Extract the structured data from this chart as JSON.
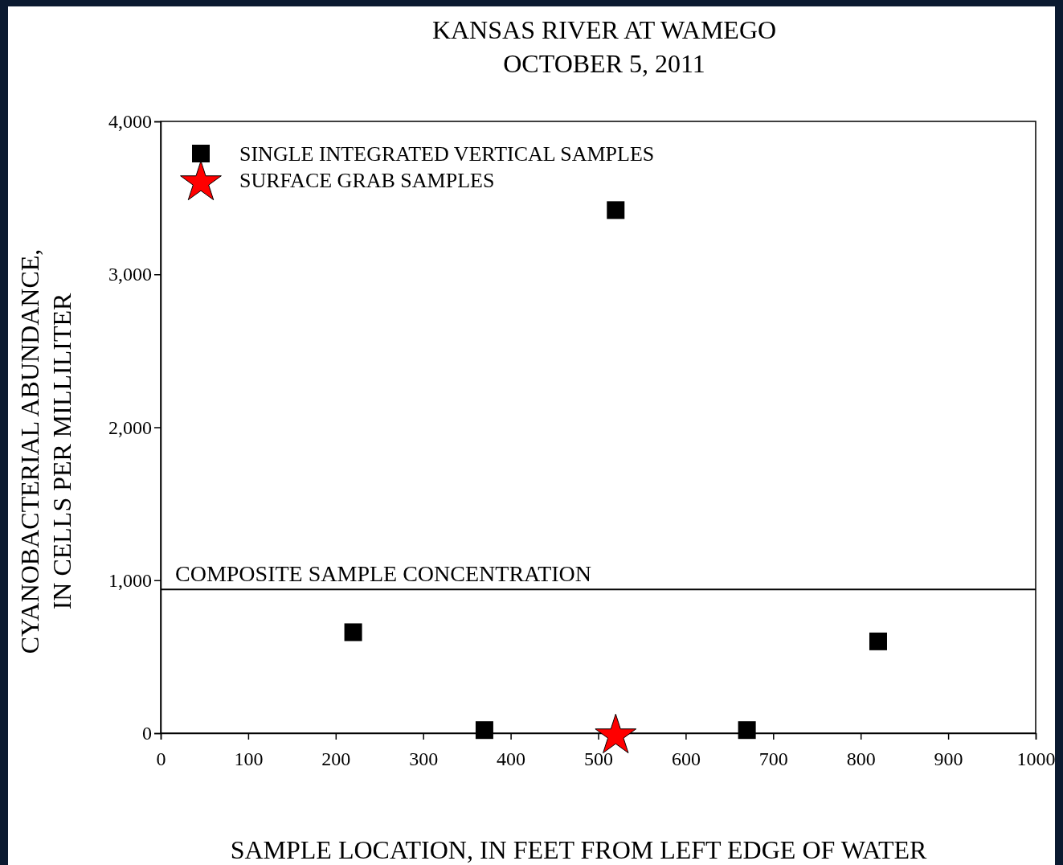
{
  "chart_data": {
    "type": "scatter",
    "title": "KANSAS RIVER AT WAMEGO\nOCTOBER 5, 2011",
    "xlabel": "SAMPLE LOCATION, IN FEET FROM LEFT EDGE OF WATER",
    "ylabel": "CYANOBACTERIAL ABUNDANCE,\nIN CELLS PER MILLILITER",
    "xlim": [
      0,
      1000
    ],
    "xticks": [
      0,
      100,
      200,
      300,
      400,
      500,
      600,
      700,
      800,
      900,
      1000
    ],
    "ylim": [
      0,
      4000
    ],
    "yticks": [
      {
        "value": 0,
        "label": "0"
      },
      {
        "value": 1000,
        "label": "1,000"
      },
      {
        "value": 2000,
        "label": "2,000"
      },
      {
        "value": 3000,
        "label": "3,000"
      },
      {
        "value": 4000,
        "label": "4,000"
      }
    ],
    "grid": false,
    "legend": "top left",
    "ref_lines": [
      {
        "axis": "y",
        "value": 940,
        "label": "COMPOSITE SAMPLE CONCENTRATION",
        "color": "#000000",
        "line_style": "solid"
      }
    ],
    "series": [
      {
        "name": "SINGLE INTEGRATED VERTICAL SAMPLES",
        "color": "#000000",
        "marker": "square",
        "x": [
          220,
          370,
          520,
          670,
          820
        ],
        "values": [
          660,
          20,
          3420,
          20,
          600
        ]
      },
      {
        "name": "SURFACE GRAB SAMPLES",
        "color": "#ff0000",
        "marker": "star",
        "x": [
          520
        ],
        "values": [
          0
        ]
      }
    ]
  }
}
